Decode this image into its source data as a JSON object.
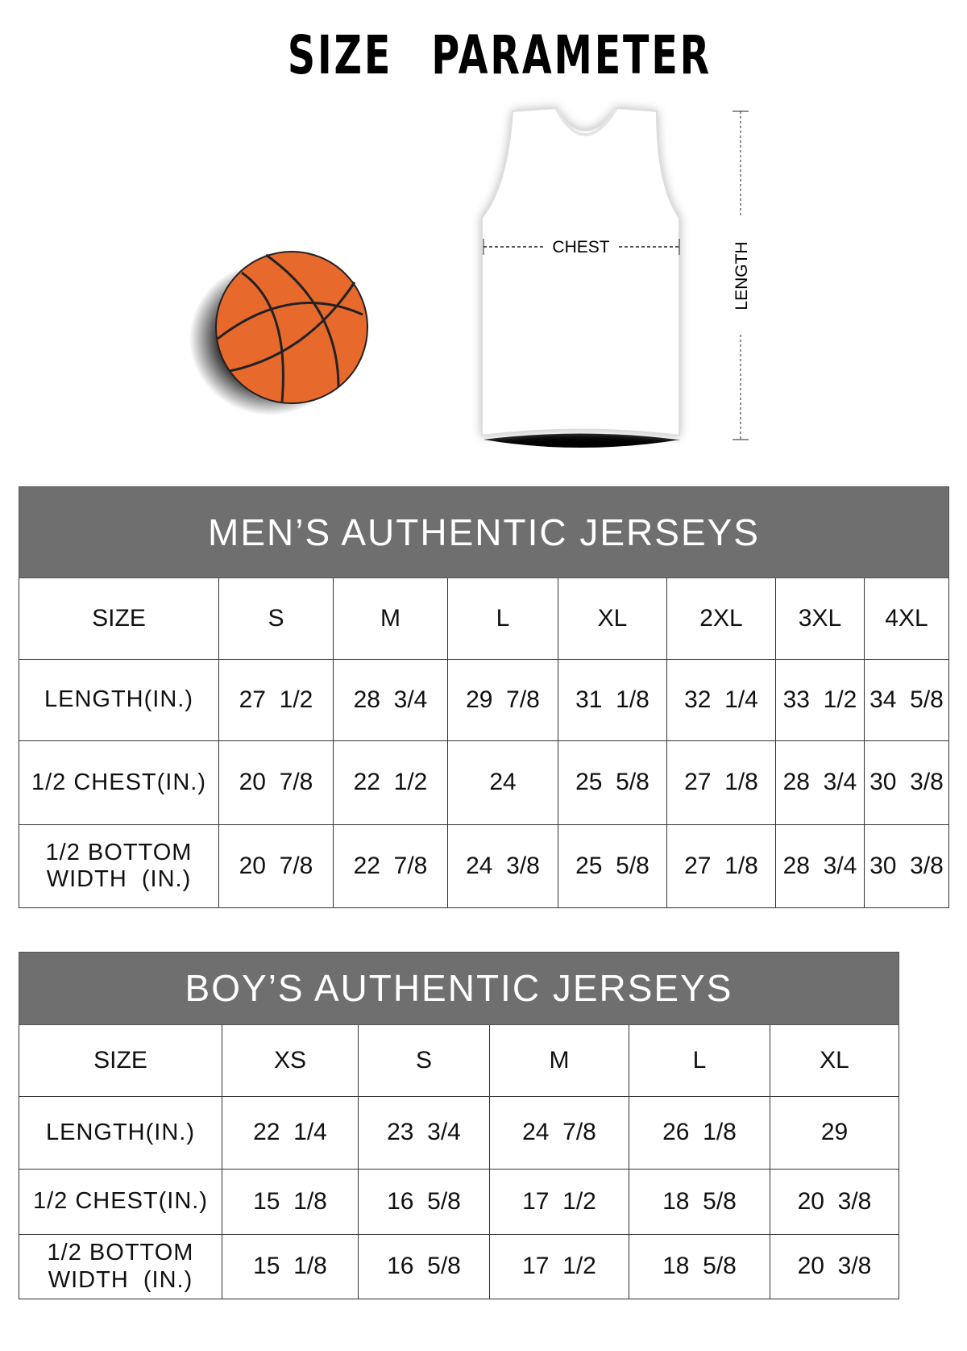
{
  "title": "SIZE PARAMETER",
  "diagram": {
    "chest_label": "CHEST",
    "length_label": "LENGTH",
    "ball_color": "#e8692c"
  },
  "men": {
    "title": "MEN’S AUTHENTIC JERSEYS",
    "header": [
      "SIZE",
      "S",
      "M",
      "L",
      "XL",
      "2XL",
      "3XL",
      "4XL"
    ],
    "rows": [
      [
        "LENGTH(IN.)",
        "27  1/2",
        "28  3/4",
        "29  7/8",
        "31  1/8",
        "32  1/4",
        "33  1/2",
        "34  5/8"
      ],
      [
        "1/2 CHEST(IN.)",
        "20  7/8",
        "22  1/2",
        "24",
        "25  5/8",
        "27  1/8",
        "28  3/4",
        "30  3/8"
      ],
      [
        "1/2 BOTTOM WIDTH  (IN.)",
        "20  7/8",
        "22  7/8",
        "24  3/8",
        "25  5/8",
        "27  1/8",
        "28  3/4",
        "30  3/8"
      ]
    ]
  },
  "boys": {
    "title": "BOY’S AUTHENTIC JERSEYS",
    "header": [
      "SIZE",
      "XS",
      "S",
      "M",
      "L",
      "XL"
    ],
    "rows": [
      [
        "LENGTH(IN.)",
        "22  1/4",
        "23  3/4",
        "24  7/8",
        "26  1/8",
        "29"
      ],
      [
        "1/2 CHEST(IN.)",
        "15  1/8",
        "16  5/8",
        "17  1/2",
        "18  5/8",
        "20  3/8"
      ],
      [
        "1/2 BOTTOM WIDTH  (IN.)",
        "15  1/8",
        "16  5/8",
        "17  1/2",
        "18  5/8",
        "20  3/8"
      ]
    ]
  },
  "header_color": "#6f6f6f"
}
